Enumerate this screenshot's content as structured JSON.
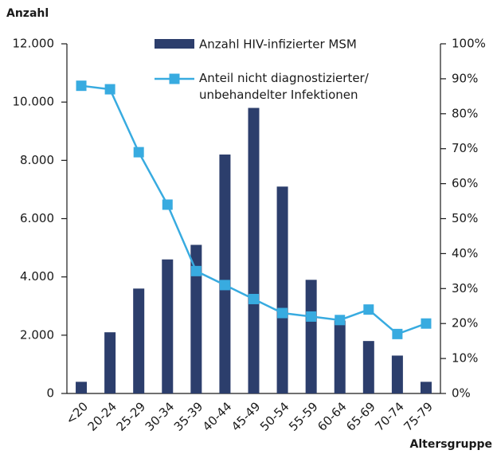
{
  "chart_data": {
    "type": "bar-line",
    "y_axis_title": "Anzahl",
    "x_axis_title": "Altersgruppe",
    "categories": [
      "<20",
      "20-24",
      "25-29",
      "30-34",
      "35-39",
      "40-44",
      "45-49",
      "50-54",
      "55-59",
      "60-64",
      "65-69",
      "70-74",
      "75-79"
    ],
    "series": [
      {
        "name": "Anzahl HIV-infizierter MSM",
        "type": "bar",
        "color": "#2c3e6c",
        "values": [
          400,
          2100,
          3600,
          4600,
          5100,
          8200,
          9800,
          7100,
          3900,
          2500,
          1800,
          1300,
          400
        ]
      },
      {
        "name": "Anteil nicht diagnostizierter/ unbehandelter Infektionen",
        "type": "line",
        "axis": "y2",
        "color": "#38abe0",
        "values": [
          88,
          87,
          69,
          54,
          35,
          31,
          27,
          23,
          22,
          21,
          24,
          17,
          20
        ]
      }
    ],
    "ylim": [
      0,
      12000
    ],
    "yticks": [
      0,
      {
        "value": 2000,
        "label": "2.000"
      },
      {
        "value": 4000,
        "label": "4.000"
      },
      {
        "value": 6000,
        "label": "6.000"
      },
      {
        "value": 8000,
        "label": "8.000"
      },
      {
        "value": 10000,
        "label": "10.000"
      },
      {
        "value": 12000,
        "label": "12.000"
      }
    ],
    "y2lim": [
      0,
      100
    ],
    "y2ticks": [
      {
        "value": 0,
        "label": "0%"
      },
      {
        "value": 10,
        "label": "10%"
      },
      {
        "value": 20,
        "label": "20%"
      },
      {
        "value": 30,
        "label": "30%"
      },
      {
        "value": 40,
        "label": "40%"
      },
      {
        "value": 50,
        "label": "50%"
      },
      {
        "value": 60,
        "label": "60%"
      },
      {
        "value": 70,
        "label": "70%"
      },
      {
        "value": 80,
        "label": "80%"
      },
      {
        "value": 90,
        "label": "90%"
      },
      {
        "value": 100,
        "label": "100%"
      }
    ],
    "grid": false
  }
}
